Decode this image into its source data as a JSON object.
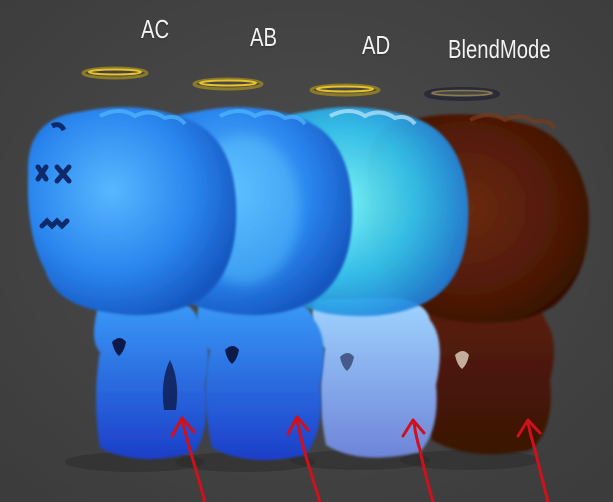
{
  "labels": {
    "ac": "AC",
    "ab": "AB",
    "ad": "AD",
    "blend_mode": "BlendMode"
  },
  "colors": {
    "background": "#454545",
    "halo": "#e8c22a",
    "arrow": "#d0101c",
    "doll_blue": "#2f86f0",
    "doll_light_blue": "#9fd0ff",
    "doll_red_brown": "#5a1e08"
  },
  "icons": {
    "halo": "halo-icon",
    "arrow": "pointer-arrow-icon"
  }
}
